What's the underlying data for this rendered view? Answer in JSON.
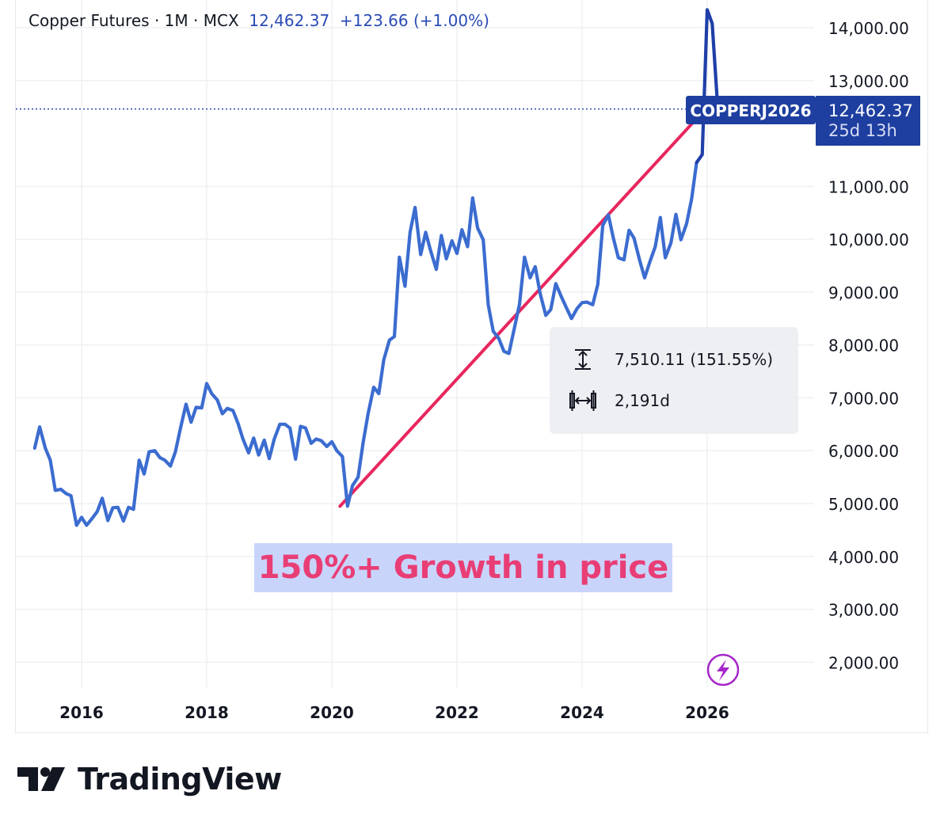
{
  "header": {
    "symbol": "Copper Futures",
    "sep1": " · ",
    "interval": "1M",
    "sep2": " · ",
    "exchange": "MCX",
    "last": "12,462.37",
    "change": "+123.66",
    "change_pct": "(+1.00%)"
  },
  "price_label": {
    "ticker": "COPPERJ2026",
    "price": "12,462.37",
    "countdown": "25d 13h"
  },
  "measure": {
    "price_range": "7,510.11 (151.55%)",
    "duration": "2,191d"
  },
  "annotation": "150%+ Growth in price",
  "logo": "TradingView",
  "colors": {
    "line": "#3b6cd0",
    "line_recent": "#1f3fa8",
    "trend": "#e8265e",
    "label_bg": "#1e3fa0",
    "annotation_text": "#e83e75",
    "annotation_bg": "#c9d4fb"
  },
  "chart_data": {
    "type": "line",
    "title": "Copper Futures · 1M · MCX",
    "xlabel": "",
    "ylabel": "",
    "ylim": [
      1500,
      14300
    ],
    "xlim": [
      2015.1,
      2027.6
    ],
    "x_ticks": [
      2016,
      2018,
      2020,
      2022,
      2024,
      2026
    ],
    "x_tick_labels": [
      "2016",
      "2018",
      "2020",
      "2022",
      "2024",
      "2026"
    ],
    "y_ticks": [
      2000,
      3000,
      4000,
      5000,
      6000,
      7000,
      8000,
      9000,
      10000,
      11000,
      13000,
      14000
    ],
    "y_tick_labels": [
      "2,000.00",
      "3,000.00",
      "4,000.00",
      "5,000.00",
      "6,000.00",
      "7,000.00",
      "8,000.00",
      "9,000.00",
      "10,000.00",
      "11,000.00",
      "13,000.00",
      "14,000.00"
    ],
    "last_value": 12462.37,
    "trend_line": {
      "x": [
        2020.13,
        2025.97
      ],
      "y": [
        4950,
        12460
      ]
    },
    "series": [
      {
        "name": "Copper Futures",
        "x": [
          2015.25,
          2015.33,
          2015.42,
          2015.5,
          2015.58,
          2015.67,
          2015.75,
          2015.83,
          2015.92,
          2016.0,
          2016.08,
          2016.17,
          2016.25,
          2016.33,
          2016.42,
          2016.5,
          2016.58,
          2016.67,
          2016.75,
          2016.83,
          2016.92,
          2017.0,
          2017.08,
          2017.17,
          2017.25,
          2017.33,
          2017.42,
          2017.5,
          2017.58,
          2017.67,
          2017.75,
          2017.83,
          2017.92,
          2018.0,
          2018.08,
          2018.17,
          2018.25,
          2018.33,
          2018.42,
          2018.5,
          2018.58,
          2018.67,
          2018.75,
          2018.83,
          2018.92,
          2019.0,
          2019.08,
          2019.17,
          2019.25,
          2019.33,
          2019.42,
          2019.5,
          2019.58,
          2019.67,
          2019.75,
          2019.83,
          2019.92,
          2020.0,
          2020.08,
          2020.17,
          2020.25,
          2020.33,
          2020.42,
          2020.5,
          2020.58,
          2020.67,
          2020.75,
          2020.83,
          2020.92,
          2021.0,
          2021.08,
          2021.17,
          2021.25,
          2021.33,
          2021.42,
          2021.5,
          2021.58,
          2021.67,
          2021.75,
          2021.83,
          2021.92,
          2022.0,
          2022.08,
          2022.17,
          2022.25,
          2022.33,
          2022.42,
          2022.5,
          2022.58,
          2022.67,
          2022.75,
          2022.83,
          2022.92,
          2023.0,
          2023.08,
          2023.17,
          2023.25,
          2023.33,
          2023.42,
          2023.5,
          2023.58,
          2023.67,
          2023.75,
          2023.83,
          2023.92,
          2024.0,
          2024.08,
          2024.17,
          2024.25,
          2024.33,
          2024.42,
          2024.5,
          2024.58,
          2024.67,
          2024.75,
          2024.83,
          2024.92,
          2025.0,
          2025.08,
          2025.17,
          2025.25,
          2025.33,
          2025.42,
          2025.5,
          2025.58,
          2025.67,
          2025.75,
          2025.83,
          2025.92,
          2026.0,
          2026.08,
          2026.17
        ],
        "values": [
          6050,
          6450,
          6050,
          5820,
          5250,
          5270,
          5190,
          5150,
          4590,
          4740,
          4590,
          4720,
          4850,
          5100,
          4680,
          4920,
          4930,
          4670,
          4930,
          4890,
          5820,
          5560,
          5980,
          6000,
          5870,
          5820,
          5710,
          5980,
          6420,
          6880,
          6540,
          6820,
          6810,
          7270,
          7080,
          6960,
          6700,
          6800,
          6760,
          6520,
          6220,
          5960,
          6240,
          5920,
          6200,
          5850,
          6220,
          6500,
          6500,
          6430,
          5840,
          6460,
          6430,
          6140,
          6220,
          6190,
          6080,
          6170,
          6000,
          5890,
          4950,
          5340,
          5500,
          6150,
          6700,
          7200,
          7080,
          7720,
          8090,
          8160,
          9660,
          9110,
          10130,
          10600,
          9710,
          10130,
          9780,
          9430,
          10070,
          9630,
          9970,
          9730,
          10180,
          9860,
          10780,
          10210,
          9990,
          8760,
          8260,
          8120,
          7880,
          7840,
          8330,
          8770,
          9660,
          9270,
          9480,
          8970,
          8560,
          8670,
          9160,
          8910,
          8700,
          8500,
          8690,
          8800,
          8810,
          8760,
          9140,
          10260,
          10460,
          10020,
          9650,
          9610,
          10170,
          10020,
          9600,
          9270,
          9560,
          9860,
          10410,
          9650,
          9930,
          10470,
          9990,
          10290,
          10760,
          11450,
          11600,
          14340,
          14080,
          12462
        ]
      }
    ]
  }
}
